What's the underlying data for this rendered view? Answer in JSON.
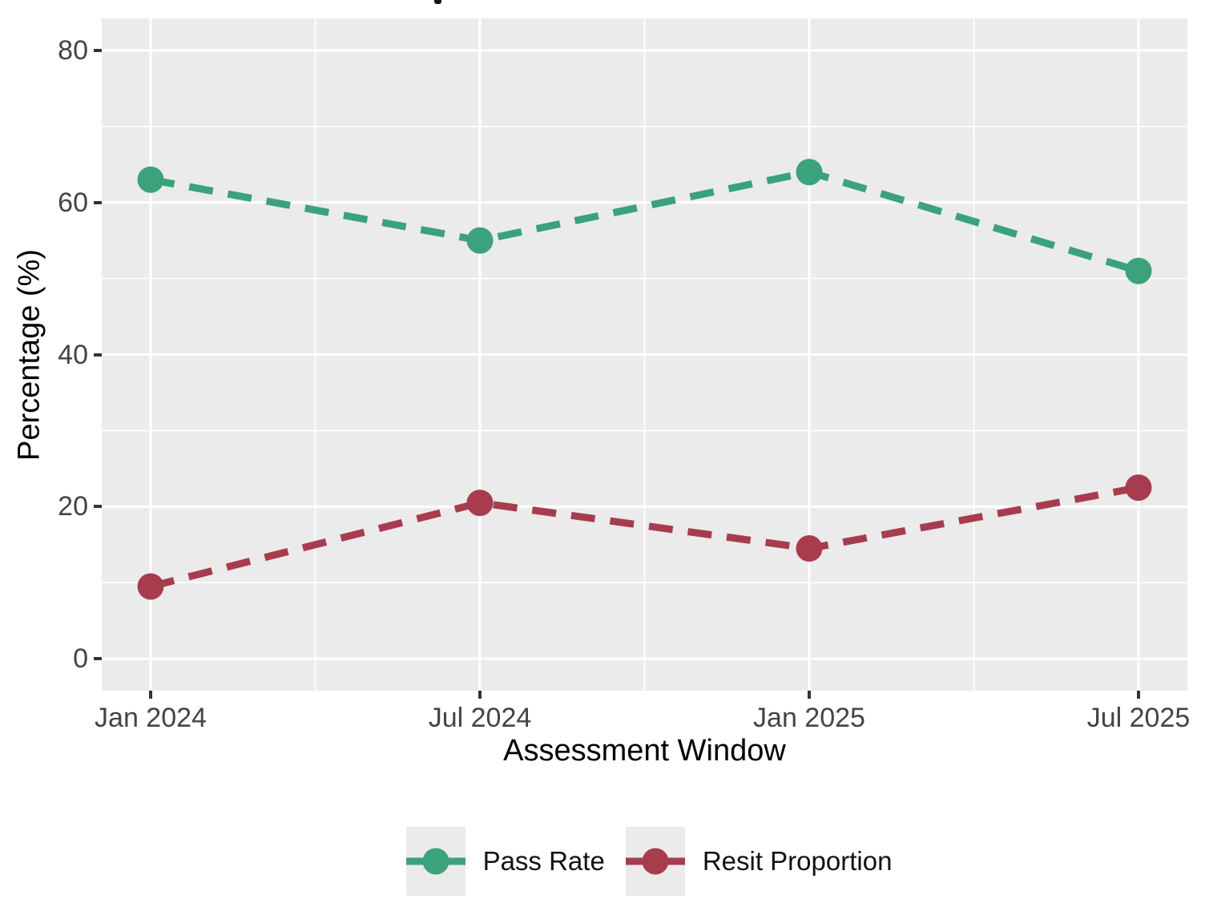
{
  "figure": {
    "panel_background": "#EBEBEB",
    "grid_color": "#FFFFFF",
    "tick_color": "#333333",
    "tick_label_color": "#444444"
  },
  "x_axis": {
    "title": "Assessment Window",
    "tick_labels": [
      "Jan 2024",
      "Jul 2024",
      "Jan 2025",
      "Jul 2025"
    ]
  },
  "y_axis": {
    "title": "Percentage (%)",
    "tick_labels": [
      "80",
      "60",
      "40",
      "20",
      "0"
    ],
    "tick_values": [
      80,
      60,
      40,
      20,
      0
    ]
  },
  "legend": {
    "items": [
      {
        "label": "Pass Rate",
        "color": "#3BA27B"
      },
      {
        "label": "Resit Proportion",
        "color": "#A83C4F"
      }
    ]
  },
  "chart_data": {
    "type": "line",
    "x": [
      "Jan 2024",
      "Jul 2024",
      "Jan 2025",
      "Jul 2025"
    ],
    "series": [
      {
        "name": "Pass Rate",
        "color": "#3BA27B",
        "values": [
          63,
          55,
          64,
          51
        ]
      },
      {
        "name": "Resit Proportion",
        "color": "#A83C4F",
        "values": [
          9.5,
          20.5,
          14.5,
          22.5
        ]
      }
    ],
    "title": "",
    "xlabel": "Assessment Window",
    "ylabel": "Percentage (%)",
    "ylim": [
      0,
      80
    ],
    "yticks": [
      0,
      20,
      40,
      60,
      80
    ],
    "line_style": "dashed",
    "marker": "circle",
    "marker_radius_px": 16.5,
    "grid": true,
    "legend_position": "bottom"
  }
}
